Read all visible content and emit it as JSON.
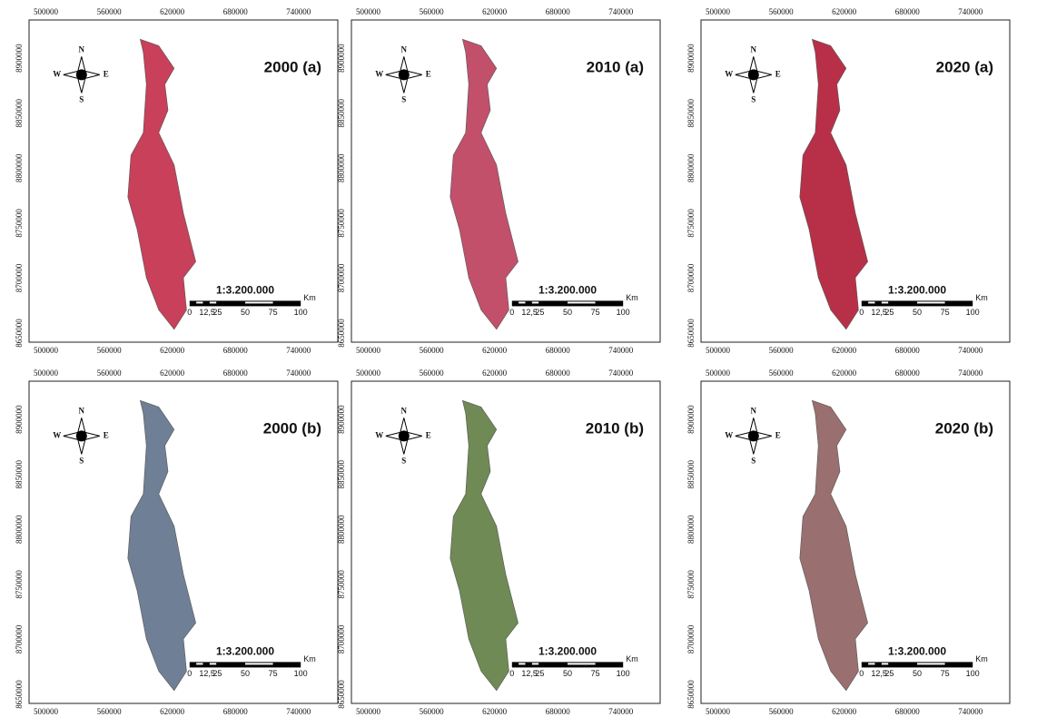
{
  "x_ticks": [
    "500000",
    "560000",
    "620000",
    "680000",
    "740000"
  ],
  "y_ticks": [
    "8650000",
    "8700000",
    "8750000",
    "8800000",
    "8850000",
    "8900000"
  ],
  "compass": {
    "north": "N",
    "south": "S",
    "west": "W",
    "east": "E"
  },
  "scale": {
    "ratio": "1:3.200.000",
    "labels": [
      "0",
      "12,5",
      "25",
      "50",
      "75",
      "100"
    ],
    "unit": "Km"
  },
  "panels": [
    {
      "title": "2000 (a)",
      "color": "#c8405a"
    },
    {
      "title": "2010 (a)",
      "color": "#c2506a"
    },
    {
      "title": "2020 (a)",
      "color": "#b83048"
    },
    {
      "title": "2000 (b)",
      "color": "#6f7f95"
    },
    {
      "title": "2010 (b)",
      "color": "#6f8a55"
    },
    {
      "title": "2020 (b)",
      "color": "#9a6f70"
    }
  ]
}
